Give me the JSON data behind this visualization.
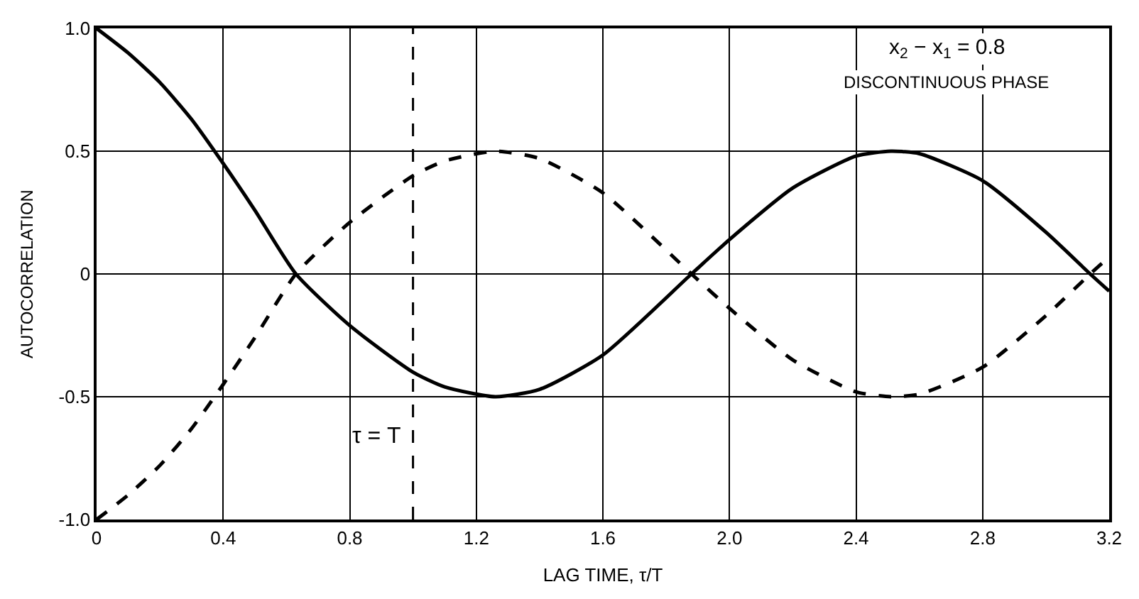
{
  "chart_data": {
    "type": "line",
    "xlabel": "LAG TIME, τ/T",
    "ylabel": "AUTOCORRELATION",
    "x": [
      0,
      0.1,
      0.2,
      0.3,
      0.4,
      0.5,
      0.63,
      0.8,
      1.0,
      1.1,
      1.26,
      1.4,
      1.6,
      1.88,
      2.0,
      2.2,
      2.4,
      2.51,
      2.6,
      2.8,
      3.0,
      3.14,
      3.2
    ],
    "series": [
      {
        "color": "#000000",
        "line_style": "solid",
        "values": [
          1.0,
          0.9,
          0.78,
          0.63,
          0.45,
          0.26,
          0,
          -0.21,
          -0.4,
          -0.46,
          -0.5,
          -0.47,
          -0.33,
          0,
          0.14,
          0.35,
          0.48,
          0.5,
          0.49,
          0.38,
          0.17,
          0,
          -0.07
        ]
      },
      {
        "color": "#000000",
        "line_style": "dashed",
        "values": [
          -1.0,
          -0.9,
          -0.78,
          -0.63,
          -0.45,
          -0.26,
          0,
          0.21,
          0.4,
          0.46,
          0.5,
          0.47,
          0.33,
          0,
          -0.14,
          -0.35,
          -0.48,
          -0.5,
          -0.49,
          -0.38,
          -0.17,
          0,
          0.07
        ]
      }
    ],
    "xlim": [
      0,
      3.2
    ],
    "xticks": [
      0,
      0.4,
      0.8,
      1.2,
      1.6,
      {
        "value": 2,
        "label": "2.0"
      },
      2.4,
      2.8,
      3.2
    ],
    "ylim": [
      -1.0,
      1.0
    ],
    "yticks": [
      {
        "value": -1,
        "label": "-1.0"
      },
      -0.5,
      0,
      0.5,
      {
        "value": 1,
        "label": "1.0"
      }
    ],
    "ref_lines": [
      {
        "axis": "x",
        "value": 1.0,
        "label": "τ = T",
        "color": "#000000",
        "line_style": "dashed"
      }
    ],
    "annotations": [
      "x$_{2}$ − x$_{1}$ = 0.8",
      "DISCONTINUOUS PHASE"
    ],
    "grid": true
  }
}
